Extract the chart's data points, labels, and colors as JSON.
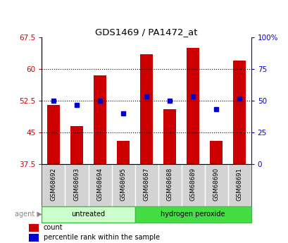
{
  "title": "GDS1469 / PA1472_at",
  "samples": [
    "GSM68692",
    "GSM68693",
    "GSM68694",
    "GSM68695",
    "GSM68687",
    "GSM68688",
    "GSM68689",
    "GSM68690",
    "GSM68691"
  ],
  "counts": [
    51.5,
    46.5,
    58.5,
    43.0,
    63.5,
    50.5,
    65.0,
    43.0,
    62.0
  ],
  "percentile_ranks": [
    52.5,
    51.5,
    52.5,
    49.5,
    53.5,
    52.5,
    53.5,
    50.5,
    53.0
  ],
  "ylim_left": [
    37.5,
    67.5
  ],
  "ylim_right": [
    0,
    100
  ],
  "yticks_left": [
    37.5,
    45.0,
    52.5,
    60.0,
    67.5
  ],
  "yticks_right": [
    0,
    25,
    50,
    75,
    100
  ],
  "ytick_labels_left": [
    "37.5",
    "45",
    "52.5",
    "60",
    "67.5"
  ],
  "ytick_labels_right": [
    "0",
    "25",
    "50",
    "75",
    "100%"
  ],
  "groups": [
    {
      "label": "untreated",
      "indices": [
        0,
        1,
        2,
        3
      ],
      "color": "#ccffcc",
      "border_color": "#44bb44"
    },
    {
      "label": "hydrogen peroxide",
      "indices": [
        4,
        5,
        6,
        7,
        8
      ],
      "color": "#44dd44",
      "border_color": "#44bb44"
    }
  ],
  "bar_color": "#cc0000",
  "dot_color": "#0000cc",
  "bar_width": 0.55,
  "left_tick_color": "#cc0000",
  "right_tick_color": "#0000cc",
  "background_color": "#ffffff",
  "label_bg_color": "#d3d3d3",
  "legend_items": [
    "count",
    "percentile rank within the sample"
  ]
}
